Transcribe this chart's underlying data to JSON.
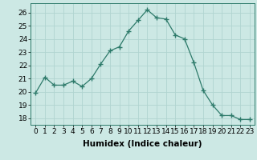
{
  "x": [
    0,
    1,
    2,
    3,
    4,
    5,
    6,
    7,
    8,
    9,
    10,
    11,
    12,
    13,
    14,
    15,
    16,
    17,
    18,
    19,
    20,
    21,
    22,
    23
  ],
  "y": [
    19.9,
    21.1,
    20.5,
    20.5,
    20.8,
    20.4,
    21.0,
    22.1,
    23.1,
    23.4,
    24.6,
    25.4,
    26.2,
    25.6,
    25.5,
    24.3,
    24.0,
    22.2,
    20.1,
    19.0,
    18.2,
    18.2,
    17.9,
    17.9
  ],
  "line_color": "#2d7a6a",
  "marker": "+",
  "marker_size": 4,
  "bg_color": "#cce8e4",
  "grid_color": "#b0d4d0",
  "xlabel": "Humidex (Indice chaleur)",
  "ylim": [
    17.5,
    26.7
  ],
  "xlim": [
    -0.5,
    23.5
  ],
  "yticks": [
    18,
    19,
    20,
    21,
    22,
    23,
    24,
    25,
    26
  ],
  "xticks": [
    0,
    1,
    2,
    3,
    4,
    5,
    6,
    7,
    8,
    9,
    10,
    11,
    12,
    13,
    14,
    15,
    16,
    17,
    18,
    19,
    20,
    21,
    22,
    23
  ],
  "xlabel_fontsize": 7.5,
  "tick_fontsize": 6.5
}
